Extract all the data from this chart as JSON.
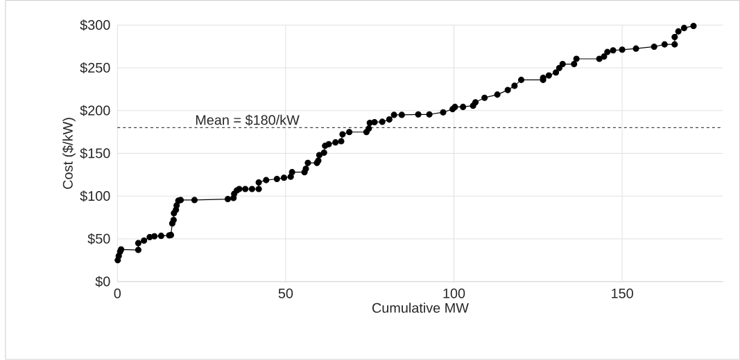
{
  "chart_data": {
    "type": "line",
    "xlabel": "Cumulative MW",
    "ylabel": "Cost ($/kW)",
    "x": [
      0.1,
      0.4,
      0.8,
      1.1,
      6.2,
      6.2,
      7.9,
      9.6,
      11,
      13,
      15.4,
      15.9,
      16.3,
      16.7,
      16.8,
      17.4,
      17.6,
      18.1,
      18.8,
      22.9,
      32.8,
      34.5,
      34.7,
      35.5,
      36.2,
      38,
      40,
      42,
      42,
      44.2,
      47.4,
      49.5,
      51.5,
      51.9,
      55.6,
      56,
      56.6,
      59.3,
      59.7,
      60,
      61.4,
      61.7,
      62.8,
      64.8,
      66.5,
      66.9,
      68.9,
      74,
      74.7,
      75,
      76.4,
      78.7,
      80.8,
      82.2,
      84.5,
      89.4,
      92.7,
      96.8,
      99.6,
      100.3,
      102.7,
      105.7,
      106.4,
      109.1,
      112.9,
      116,
      118,
      120,
      126.5,
      126.5,
      128.2,
      130.3,
      131.3,
      132.3,
      135.7,
      136.4,
      143.2,
      144.6,
      145.6,
      147.3,
      150,
      154.1,
      159.5,
      162.6,
      165.6,
      165.6,
      166.7,
      168.4,
      171.2
    ],
    "values": [
      25,
      30,
      35,
      37.6,
      37,
      45,
      48,
      52,
      53,
      53.5,
      54,
      54.5,
      68,
      72,
      80,
      84,
      89,
      94.6,
      95.4,
      95.4,
      96.5,
      97.8,
      102.7,
      106.7,
      108.3,
      108.3,
      108.3,
      108.3,
      116,
      118.7,
      120,
      121.4,
      122.7,
      128,
      128,
      132,
      138.8,
      138.8,
      141.5,
      148,
      150.8,
      158.8,
      160.7,
      162.8,
      164.2,
      172.2,
      174.9,
      174.9,
      179,
      185.6,
      186.4,
      186.9,
      189.6,
      195,
      195,
      195.5,
      195.5,
      198,
      201.7,
      204.3,
      204.3,
      205.7,
      209.7,
      215,
      218.7,
      224,
      229,
      235.9,
      235.9,
      238.3,
      241,
      244.5,
      249.8,
      254.4,
      254.4,
      260.5,
      260.5,
      263.2,
      268.5,
      270.4,
      271.2,
      272.5,
      274.7,
      277.4,
      277.4,
      286,
      292.6,
      296.6,
      299
    ],
    "color": "#000000",
    "marker": "circle",
    "line_style": "solid",
    "grid": true,
    "xlim": [
      0,
      180
    ],
    "xticks": [
      0,
      50,
      100,
      150
    ],
    "ylim": [
      0,
      300
    ],
    "yticks": [
      {
        "value": 0,
        "label": "$0"
      },
      {
        "value": 50,
        "label": "$50"
      },
      {
        "value": 100,
        "label": "$100"
      },
      {
        "value": 150,
        "label": "$150"
      },
      {
        "value": 200,
        "label": "$200"
      },
      {
        "value": 250,
        "label": "$250"
      },
      {
        "value": 300,
        "label": "$300"
      }
    ],
    "ref_lines": [
      {
        "axis": "y",
        "value": 180,
        "label": "Mean = $180/kW",
        "line_style": "dashed",
        "color": "#404040"
      }
    ]
  }
}
